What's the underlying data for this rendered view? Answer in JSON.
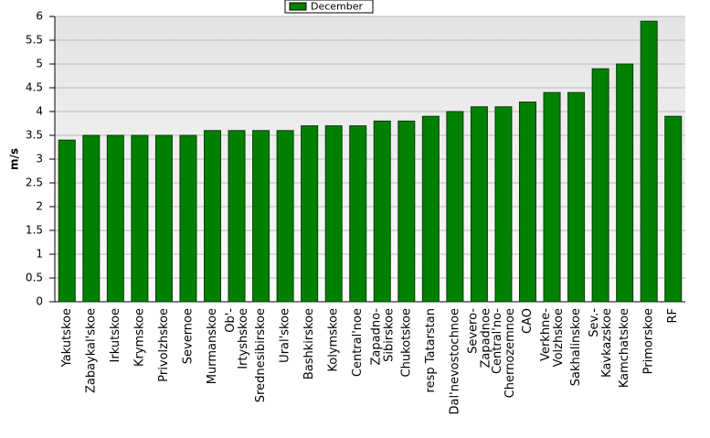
{
  "chart_data": {
    "type": "bar",
    "ylabel": "m/s",
    "categories": [
      "Yakutskoe",
      "Zabaykal'skoe",
      "Irkutskoe",
      "Krymskoe",
      "Privolzhskoe",
      "Severnoe",
      "Murmanskoe",
      "Ob'-\nIrtyshskoe",
      "Srednesibirskoe",
      "Ural'skoe",
      "Bashkirskoe",
      "Kolymskoe",
      "Central'noe",
      "Zapadno-\nSibirskoe",
      "Chukotskoe",
      "resp Tatarstan",
      "Dal'nevostochnoe",
      "Severo-\nZapadnoe",
      "Central'no-\nChernozemnoe",
      "CAO",
      "Verkhne-\nVolzhskoe",
      "Sakhalinskoe",
      "Sev.-\nKavkazskoe",
      "Kamchatskoe",
      "Primorskoe",
      "RF"
    ],
    "series": [
      {
        "name": "December",
        "color": "#008000",
        "values": [
          3.4,
          3.5,
          3.5,
          3.5,
          3.5,
          3.5,
          3.6,
          3.6,
          3.6,
          3.6,
          3.7,
          3.7,
          3.7,
          3.8,
          3.8,
          3.9,
          4.0,
          4.1,
          4.1,
          4.2,
          4.4,
          4.4,
          4.9,
          5.0,
          5.9,
          3.9
        ]
      }
    ],
    "ylim": [
      0,
      6
    ],
    "yticks": [
      0,
      0.5,
      1,
      1.5,
      2,
      2.5,
      3,
      3.5,
      4,
      4.5,
      5,
      5.5,
      6
    ],
    "grid": true,
    "legend": "top"
  }
}
